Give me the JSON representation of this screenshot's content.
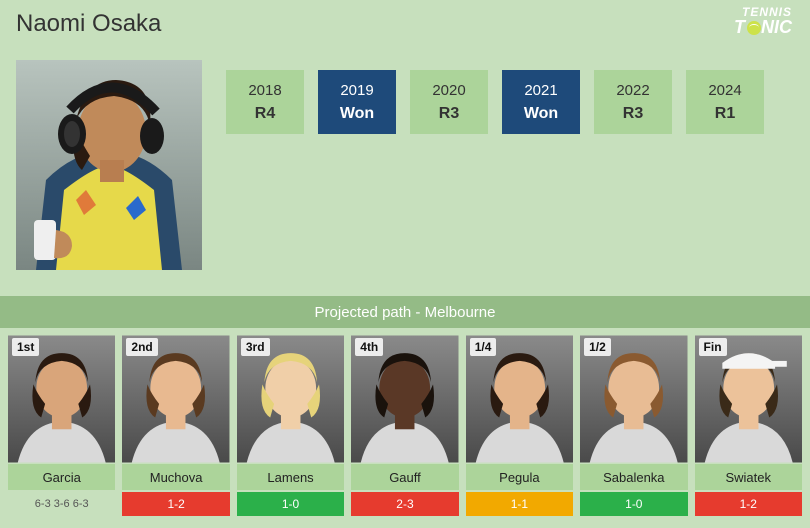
{
  "brand": {
    "line1": "TENNIS",
    "line2": "T  NIC"
  },
  "player": {
    "name": "Naomi Osaka"
  },
  "colors": {
    "bg_light": "#c7e0bd",
    "bg_mid": "#acd49a",
    "bg_dark": "#94bb86",
    "won_bg": "#1e4a7a",
    "h2h_win": "#2bb04a",
    "h2h_loss": "#e63b2e",
    "h2h_draw": "#f2a900",
    "text": "#333333"
  },
  "history": [
    {
      "year": "2018",
      "result": "R4",
      "won": false
    },
    {
      "year": "2019",
      "result": "Won",
      "won": true
    },
    {
      "year": "2020",
      "result": "R3",
      "won": false
    },
    {
      "year": "2021",
      "result": "Won",
      "won": true
    },
    {
      "year": "2022",
      "result": "R3",
      "won": false
    },
    {
      "year": "2024",
      "result": "R1",
      "won": false
    }
  ],
  "path_title": "Projected path - Melbourne",
  "opponents": [
    {
      "round": "1st",
      "name": "Garcia",
      "score": "6-3 3-6 6-3",
      "h2h": "",
      "h2h_type": "score",
      "skin": "#d9a57a",
      "hair": "#2a1a10"
    },
    {
      "round": "2nd",
      "name": "Muchova",
      "score": "",
      "h2h": "1-2",
      "h2h_type": "loss",
      "skin": "#e8b990",
      "hair": "#5a3a20"
    },
    {
      "round": "3rd",
      "name": "Lamens",
      "score": "",
      "h2h": "1-0",
      "h2h_type": "win",
      "skin": "#f0cfa8",
      "hair": "#e6d37a"
    },
    {
      "round": "4th",
      "name": "Gauff",
      "score": "",
      "h2h": "2-3",
      "h2h_type": "loss",
      "skin": "#5a3826",
      "hair": "#1a120c"
    },
    {
      "round": "1/4",
      "name": "Pegula",
      "score": "",
      "h2h": "1-1",
      "h2h_type": "draw",
      "skin": "#e4b48a",
      "hair": "#2a1a10"
    },
    {
      "round": "1/2",
      "name": "Sabalenka",
      "score": "",
      "h2h": "1-0",
      "h2h_type": "win",
      "skin": "#e8bc94",
      "hair": "#8a5a30"
    },
    {
      "round": "Fin",
      "name": "Swiatek",
      "score": "",
      "h2h": "1-2",
      "h2h_type": "loss",
      "skin": "#ecc29a",
      "hair": "#3a2a18"
    }
  ]
}
